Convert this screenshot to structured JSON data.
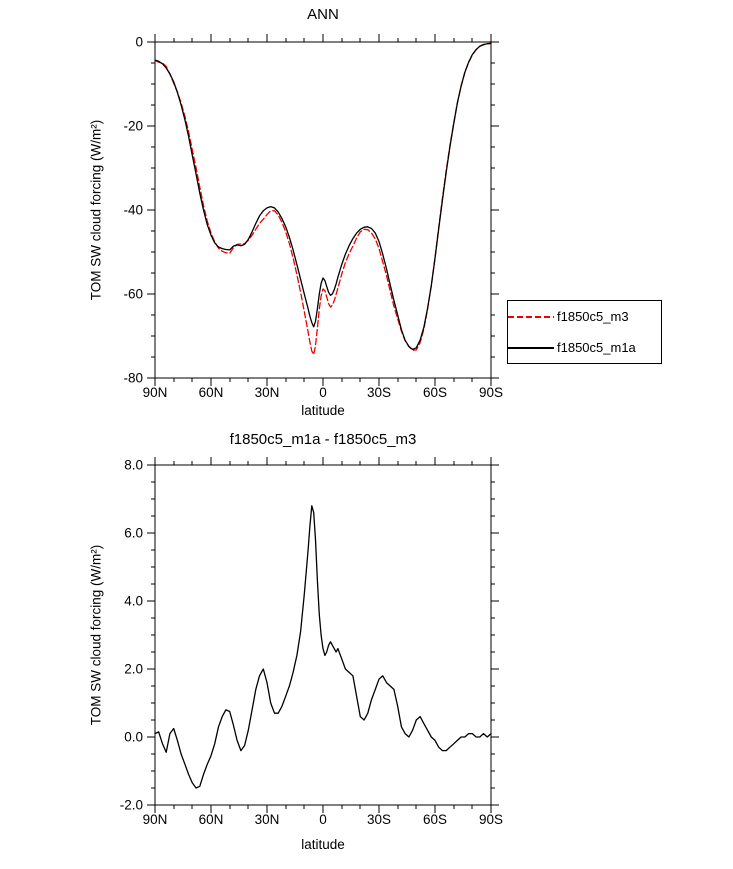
{
  "chart_data": [
    {
      "type": "line",
      "title": "ANN",
      "xlabel": "latitude",
      "ylabel": "TOM SW cloud forcing (W/m²)",
      "x_axis": {
        "range": [
          90,
          -90
        ],
        "ticks": [
          90,
          60,
          30,
          0,
          -30,
          -60,
          -90
        ],
        "tick_labels": [
          "90N",
          "60N",
          "30N",
          "0",
          "30S",
          "60S",
          "90S"
        ],
        "minor_step": 10
      },
      "y_axis": {
        "range": [
          -80,
          0
        ],
        "ticks": [
          0,
          -20,
          -40,
          -60,
          -80
        ],
        "tick_labels": [
          "0",
          "-20",
          "-40",
          "-60",
          "-80"
        ],
        "minor_step": 5
      },
      "grid": false,
      "legend": {
        "position": "middle-right",
        "entries": [
          {
            "label": "f1850c5_m3",
            "color": "#ee0000",
            "style": "dashed"
          },
          {
            "label": "f1850c5_m1a",
            "color": "#000000",
            "style": "solid"
          }
        ]
      },
      "series": [
        {
          "name": "f1850c5_m3",
          "color": "#ee0000",
          "style": "dashed",
          "x": [
            90,
            88,
            86,
            84,
            82,
            80,
            78,
            76,
            74,
            72,
            70,
            68,
            66,
            64,
            62,
            60,
            58,
            56,
            54,
            52,
            50,
            48,
            46,
            44,
            42,
            40,
            38,
            36,
            34,
            32,
            30,
            28,
            26,
            24,
            22,
            20,
            18,
            16,
            14,
            12,
            10,
            8,
            7,
            6,
            5,
            4,
            3,
            2,
            1,
            0,
            -1,
            -2,
            -3,
            -4,
            -5,
            -6,
            -7,
            -8,
            -10,
            -12,
            -14,
            -16,
            -18,
            -20,
            -22,
            -24,
            -26,
            -28,
            -30,
            -32,
            -34,
            -36,
            -38,
            -40,
            -42,
            -44,
            -46,
            -48,
            -50,
            -52,
            -54,
            -56,
            -58,
            -60,
            -62,
            -64,
            -66,
            -68,
            -70,
            -72,
            -74,
            -76,
            -78,
            -80,
            -82,
            -84,
            -86,
            -88,
            -90
          ],
          "y": [
            -4.4,
            -4.8,
            -5.0,
            -5.8,
            -7.7,
            -9.8,
            -11.9,
            -14.5,
            -17.7,
            -21.4,
            -25.7,
            -30,
            -34.6,
            -38.9,
            -42.7,
            -45.5,
            -47.6,
            -49.1,
            -49.8,
            -50.2,
            -50.3,
            -49,
            -48.2,
            -48.1,
            -48,
            -47.2,
            -46,
            -44.6,
            -43.2,
            -42.2,
            -41.1,
            -40.2,
            -40.2,
            -41.2,
            -42.9,
            -45.2,
            -48,
            -51.4,
            -55.4,
            -59.6,
            -64.2,
            -69,
            -71.5,
            -73.6,
            -74.4,
            -72.3,
            -68.1,
            -63.6,
            -60.5,
            -58.8,
            -59.2,
            -60.7,
            -62.3,
            -63.1,
            -62.7,
            -61.6,
            -60.1,
            -58.6,
            -55.3,
            -52.5,
            -50.4,
            -48.6,
            -46.7,
            -45.2,
            -44.6,
            -44.7,
            -45.5,
            -46.9,
            -49.2,
            -52.3,
            -55.6,
            -59.3,
            -62.9,
            -65.9,
            -68.8,
            -71.1,
            -72.5,
            -73.4,
            -73.3,
            -71.6,
            -68.4,
            -63.7,
            -58,
            -51.4,
            -44.2,
            -37.1,
            -30.6,
            -24.7,
            -19.3,
            -14.4,
            -10.5,
            -7.2,
            -4.9,
            -3.1,
            -1.8,
            -1.0,
            -0.7,
            -0.4,
            -0.4
          ]
        },
        {
          "name": "f1850c5_m1a",
          "color": "#000000",
          "style": "solid",
          "x": [
            90,
            88,
            86,
            84,
            82,
            80,
            78,
            76,
            74,
            72,
            70,
            68,
            66,
            64,
            62,
            60,
            58,
            56,
            54,
            52,
            50,
            48,
            46,
            44,
            42,
            40,
            38,
            36,
            34,
            32,
            30,
            28,
            26,
            24,
            22,
            20,
            18,
            16,
            14,
            12,
            10,
            8,
            7,
            6,
            5,
            4,
            3,
            2,
            1,
            0,
            -1,
            -2,
            -3,
            -4,
            -5,
            -6,
            -7,
            -8,
            -10,
            -12,
            -14,
            -16,
            -18,
            -20,
            -22,
            -24,
            -26,
            -28,
            -30,
            -32,
            -34,
            -36,
            -38,
            -40,
            -42,
            -44,
            -46,
            -48,
            -50,
            -52,
            -54,
            -56,
            -58,
            -60,
            -62,
            -64,
            -66,
            -68,
            -70,
            -72,
            -74,
            -76,
            -78,
            -80,
            -82,
            -84,
            -86,
            -88,
            -90
          ],
          "y": [
            -4.3,
            -4.6,
            -5.2,
            -6.2,
            -7.6,
            -9.5,
            -12,
            -15,
            -18.5,
            -22.5,
            -27,
            -31.5,
            -36,
            -40,
            -43.5,
            -46,
            -47.8,
            -48.8,
            -49.2,
            -49.4,
            -49.5,
            -48.6,
            -48.3,
            -48.5,
            -48.2,
            -47,
            -45.2,
            -43.2,
            -41.4,
            -40.2,
            -39.5,
            -39.2,
            -39.5,
            -40.5,
            -42,
            -44,
            -46.5,
            -49.5,
            -53,
            -56.5,
            -60,
            -63.5,
            -65.3,
            -66.8,
            -67.8,
            -66.5,
            -63.5,
            -60,
            -57.5,
            -56.2,
            -56.8,
            -58.2,
            -59.6,
            -60.3,
            -60,
            -59,
            -57.6,
            -56,
            -53,
            -50.5,
            -48.5,
            -46.8,
            -45.5,
            -44.6,
            -44.1,
            -44,
            -44.4,
            -45.5,
            -47.5,
            -50.5,
            -54,
            -57.8,
            -61.5,
            -65,
            -68.5,
            -71,
            -72.5,
            -73.2,
            -72.8,
            -71,
            -68,
            -63.5,
            -58,
            -51.5,
            -44.5,
            -37.5,
            -31,
            -25,
            -19.5,
            -14.5,
            -10.5,
            -7.2,
            -4.8,
            -3,
            -1.8,
            -1,
            -0.6,
            -0.4,
            -0.3
          ]
        }
      ]
    },
    {
      "type": "line",
      "title": "f1850c5_m1a - f1850c5_m3",
      "xlabel": "latitude",
      "ylabel": "TOM SW cloud forcing (W/m²)",
      "x_axis": {
        "range": [
          90,
          -90
        ],
        "ticks": [
          90,
          60,
          30,
          0,
          -30,
          -60,
          -90
        ],
        "tick_labels": [
          "90N",
          "60N",
          "30N",
          "0",
          "30S",
          "60S",
          "90S"
        ],
        "minor_step": 10
      },
      "y_axis": {
        "range": [
          -2,
          8
        ],
        "ticks": [
          8,
          6,
          4,
          2,
          0,
          -2
        ],
        "tick_labels": [
          "8.0",
          "6.0",
          "4.0",
          "2.0",
          "0.0",
          "-2.0"
        ],
        "minor_step": 0.5
      },
      "grid": false,
      "series": [
        {
          "name": "f1850c5_m1a - f1850c5_m3",
          "color": "#000000",
          "style": "solid",
          "x": [
            90,
            88,
            86,
            84,
            82,
            80,
            78,
            76,
            74,
            72,
            70,
            68,
            66,
            64,
            62,
            60,
            58,
            56,
            54,
            52,
            50,
            48,
            46,
            44,
            42,
            40,
            38,
            36,
            34,
            32,
            30,
            28,
            26,
            24,
            22,
            20,
            18,
            16,
            14,
            12,
            10,
            8,
            7,
            6,
            5,
            4,
            3,
            2,
            1,
            0,
            -1,
            -2,
            -3,
            -4,
            -5,
            -6,
            -7,
            -8,
            -10,
            -12,
            -14,
            -16,
            -18,
            -20,
            -22,
            -24,
            -26,
            -28,
            -30,
            -32,
            -34,
            -36,
            -38,
            -40,
            -42,
            -44,
            -46,
            -48,
            -50,
            -52,
            -54,
            -56,
            -58,
            -60,
            -62,
            -64,
            -66,
            -68,
            -70,
            -72,
            -74,
            -76,
            -78,
            -80,
            -82,
            -84,
            -86,
            -88,
            -90
          ],
          "y": [
            0.1,
            0.15,
            -0.2,
            -0.45,
            0.1,
            0.25,
            -0.1,
            -0.5,
            -0.8,
            -1.1,
            -1.35,
            -1.5,
            -1.45,
            -1.1,
            -0.8,
            -0.55,
            -0.2,
            0.3,
            0.6,
            0.8,
            0.75,
            0.35,
            -0.1,
            -0.4,
            -0.25,
            0.2,
            0.8,
            1.4,
            1.8,
            2.0,
            1.6,
            1.0,
            0.7,
            0.7,
            0.9,
            1.2,
            1.5,
            1.9,
            2.4,
            3.1,
            4.2,
            5.5,
            6.2,
            6.8,
            6.6,
            5.8,
            4.6,
            3.6,
            3.0,
            2.6,
            2.4,
            2.5,
            2.7,
            2.8,
            2.7,
            2.6,
            2.5,
            2.6,
            2.3,
            2.0,
            1.9,
            1.8,
            1.2,
            0.6,
            0.5,
            0.7,
            1.1,
            1.4,
            1.7,
            1.8,
            1.6,
            1.5,
            1.4,
            0.9,
            0.3,
            0.1,
            0.0,
            0.2,
            0.5,
            0.6,
            0.4,
            0.2,
            0.0,
            -0.1,
            -0.3,
            -0.4,
            -0.4,
            -0.3,
            -0.2,
            -0.1,
            0.0,
            0.0,
            0.1,
            0.1,
            0.0,
            0.0,
            0.1,
            0.0,
            0.1
          ]
        }
      ]
    }
  ]
}
